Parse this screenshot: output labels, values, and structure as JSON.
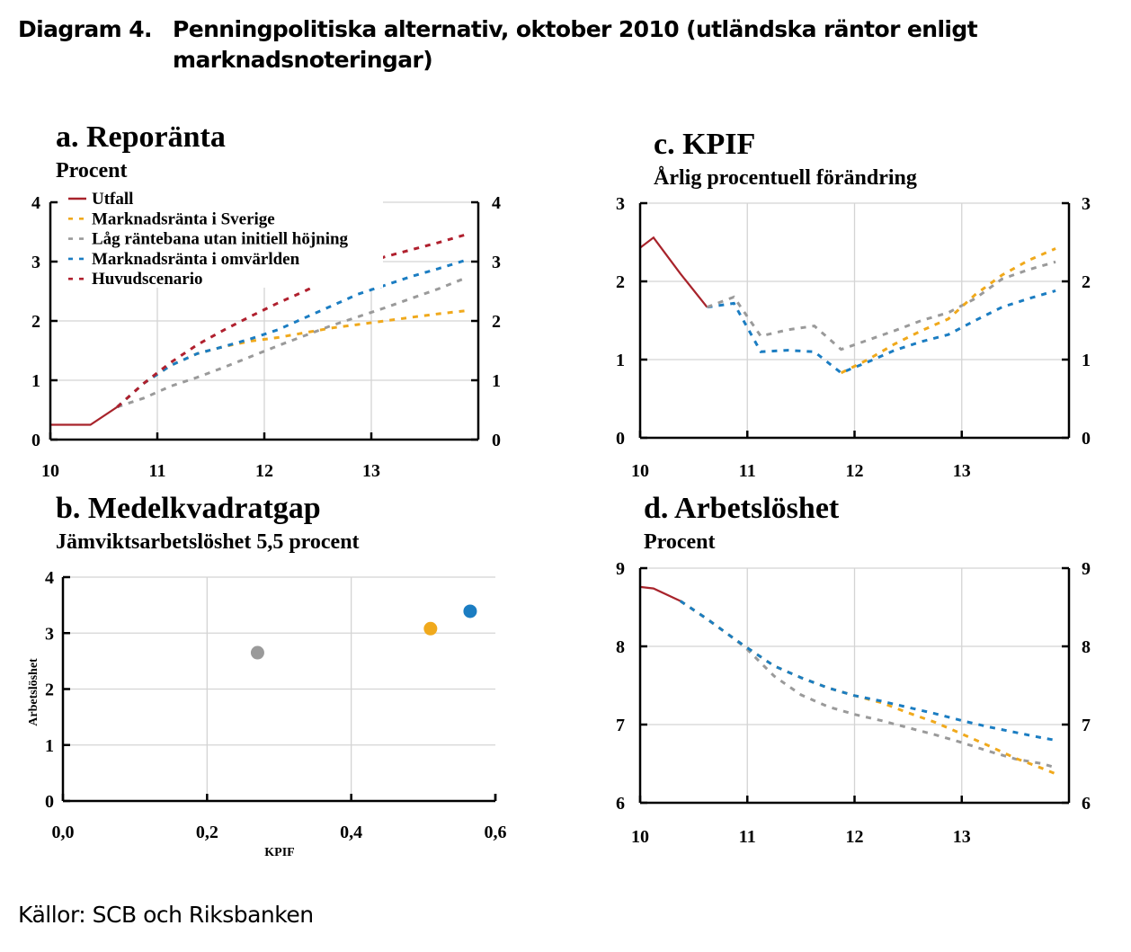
{
  "title": {
    "label": "Diagram 4.",
    "text_line1": "Penningpolitiska alternativ, oktober 2010 (utländska räntor enligt",
    "text_line2": "marknadsnoteringar)"
  },
  "source": "Källor: SCB och Riksbanken",
  "colors": {
    "utfall": "#a8232b",
    "marknad_sverige": "#f0a91c",
    "lag_rantebana": "#9a9a9a",
    "marknad_omvarlden": "#1b7dc2",
    "huvudscenario": "#b0202e"
  },
  "chart_data": [
    {
      "id": "a",
      "type": "line",
      "title": "a. Reporänta",
      "subtitle": "Procent",
      "xlim": [
        10,
        14
      ],
      "ylim": [
        0,
        4
      ],
      "xticks": [
        10,
        11,
        12,
        13
      ],
      "yticks": [
        0,
        1,
        2,
        3,
        4
      ],
      "grid": true,
      "legend": "top-left",
      "series": [
        {
          "name": "Utfall",
          "key": "utfall",
          "dashed": false,
          "x": [
            10.0,
            10.375,
            10.625
          ],
          "y": [
            0.25,
            0.25,
            0.55
          ]
        },
        {
          "name": "Marknadsränta i Sverige",
          "key": "marknad_sverige",
          "dashed": true,
          "x": [
            10.625,
            10.875,
            11.125,
            11.375,
            11.625,
            11.875,
            12.125,
            12.375,
            12.625,
            12.875,
            13.125,
            13.375,
            13.625,
            13.875
          ],
          "y": [
            0.55,
            0.95,
            1.25,
            1.45,
            1.57,
            1.66,
            1.72,
            1.8,
            1.88,
            1.94,
            2.0,
            2.06,
            2.12,
            2.17
          ]
        },
        {
          "name": "Låg räntebana utan initiell höjning",
          "key": "lag_rantebana",
          "dashed": true,
          "x": [
            10.625,
            10.875,
            11.125,
            11.375,
            11.625,
            11.875,
            12.125,
            12.375,
            12.625,
            12.875,
            13.125,
            13.375,
            13.625,
            13.875
          ],
          "y": [
            0.55,
            0.7,
            0.9,
            1.05,
            1.22,
            1.4,
            1.58,
            1.75,
            1.92,
            2.07,
            2.22,
            2.38,
            2.54,
            2.72
          ]
        },
        {
          "name": "Marknadsränta i omvärlden",
          "key": "marknad_omvarlden",
          "dashed": true,
          "x": [
            10.625,
            10.875,
            11.125,
            11.375,
            11.625,
            11.875,
            12.125,
            12.375,
            12.625,
            12.875,
            13.125,
            13.375,
            13.625,
            13.875
          ],
          "y": [
            0.55,
            0.95,
            1.25,
            1.45,
            1.57,
            1.7,
            1.85,
            2.05,
            2.25,
            2.45,
            2.6,
            2.75,
            2.88,
            3.02
          ]
        },
        {
          "name": "Huvudscenario",
          "key": "huvudscenario",
          "dashed": true,
          "x": [
            10.625,
            10.875,
            11.125,
            11.375,
            11.625,
            11.875,
            12.125,
            12.375,
            12.625,
            12.875,
            13.125,
            13.375,
            13.625,
            13.875
          ],
          "y": [
            0.55,
            0.95,
            1.3,
            1.6,
            1.85,
            2.08,
            2.3,
            2.5,
            2.72,
            2.92,
            3.08,
            3.2,
            3.32,
            3.45
          ]
        }
      ]
    },
    {
      "id": "b",
      "type": "scatter",
      "title": "b. Medelkvadratgap",
      "subtitle": "Jämviktsarbetslöshet 5,5 procent",
      "xlabel": "KPIF",
      "ylabel": "Arbetslöshet",
      "xlim": [
        0,
        0.6
      ],
      "ylim": [
        0,
        4
      ],
      "xticks": [
        "0,0",
        "0,2",
        "0,4",
        "0,6"
      ],
      "xtick_values": [
        0,
        0.2,
        0.4,
        0.6
      ],
      "yticks": [
        0,
        1,
        2,
        3,
        4
      ],
      "grid": true,
      "points": [
        {
          "key": "lag_rantebana",
          "x": 0.27,
          "y": 2.65
        },
        {
          "key": "marknad_sverige",
          "x": 0.51,
          "y": 3.08
        },
        {
          "key": "marknad_omvarlden",
          "x": 0.565,
          "y": 3.39
        }
      ]
    },
    {
      "id": "c",
      "type": "line",
      "title": "c. KPIF",
      "subtitle": "Årlig procentuell förändring",
      "xlim": [
        10,
        14
      ],
      "ylim": [
        0,
        3
      ],
      "xticks": [
        10,
        11,
        12,
        13
      ],
      "yticks": [
        0,
        1,
        2,
        3
      ],
      "grid": true,
      "series": [
        {
          "name": "Utfall",
          "key": "utfall",
          "dashed": false,
          "x": [
            10.0,
            10.125,
            10.375,
            10.625
          ],
          "y": [
            2.43,
            2.56,
            2.1,
            1.67
          ]
        },
        {
          "name": "Marknadsränta i omvärlden",
          "key": "marknad_omvarlden",
          "dashed": true,
          "x": [
            10.625,
            10.875,
            11.125,
            11.375,
            11.625,
            11.875,
            12.125,
            12.375,
            12.625,
            12.875,
            13.125,
            13.375,
            13.625,
            13.875
          ],
          "y": [
            1.67,
            1.72,
            1.1,
            1.12,
            1.1,
            0.83,
            0.97,
            1.12,
            1.23,
            1.32,
            1.5,
            1.67,
            1.78,
            1.88
          ]
        },
        {
          "name": "Låg räntebana utan initiell höjning",
          "key": "lag_rantebana",
          "dashed": true,
          "x": [
            10.625,
            10.875,
            11.125,
            11.375,
            11.625,
            11.875,
            12.125,
            12.375,
            12.625,
            12.875,
            13.125,
            13.375,
            13.625,
            13.875
          ],
          "y": [
            1.67,
            1.8,
            1.3,
            1.38,
            1.43,
            1.13,
            1.25,
            1.37,
            1.5,
            1.6,
            1.78,
            2.03,
            2.15,
            2.25
          ]
        },
        {
          "name": "Marknadsränta i Sverige",
          "key": "marknad_sverige",
          "dashed": true,
          "x": [
            11.875,
            12.125,
            12.375,
            12.625,
            12.875,
            13.125,
            13.375,
            13.625,
            13.875
          ],
          "y": [
            0.83,
            1.0,
            1.2,
            1.37,
            1.52,
            1.83,
            2.08,
            2.27,
            2.42
          ]
        }
      ]
    },
    {
      "id": "d",
      "type": "line",
      "title": "d. Arbetslöshet",
      "subtitle": "Procent",
      "xlim": [
        10,
        14
      ],
      "ylim": [
        6,
        9
      ],
      "xticks": [
        10,
        11,
        12,
        13
      ],
      "yticks": [
        6,
        7,
        8,
        9
      ],
      "grid": true,
      "series": [
        {
          "name": "Utfall",
          "key": "utfall",
          "dashed": false,
          "x": [
            10.0,
            10.125,
            10.375
          ],
          "y": [
            8.76,
            8.74,
            8.58
          ]
        },
        {
          "name": "Låg räntebana utan initiell höjning",
          "key": "lag_rantebana",
          "dashed": true,
          "x": [
            10.375,
            10.625,
            10.875,
            11.0,
            11.25,
            11.5,
            11.75,
            12.0,
            12.25,
            12.5,
            12.75,
            13.0,
            13.25,
            13.5,
            13.75,
            13.875
          ],
          "y": [
            8.58,
            8.35,
            8.1,
            7.96,
            7.62,
            7.38,
            7.23,
            7.13,
            7.05,
            6.96,
            6.87,
            6.77,
            6.66,
            6.56,
            6.5,
            6.45
          ]
        },
        {
          "name": "Marknadsränta i Sverige",
          "key": "marknad_sverige",
          "dashed": true,
          "x": [
            10.375,
            10.625,
            10.875,
            11.0,
            11.25,
            11.5,
            11.75,
            12.0,
            12.25,
            12.5,
            12.75,
            13.0,
            13.25,
            13.5,
            13.75,
            13.875
          ],
          "y": [
            8.58,
            8.35,
            8.1,
            7.98,
            7.75,
            7.6,
            7.47,
            7.37,
            7.28,
            7.15,
            7.03,
            6.88,
            6.73,
            6.57,
            6.44,
            6.37
          ]
        },
        {
          "name": "Marknadsränta i omvärlden",
          "key": "marknad_omvarlden",
          "dashed": true,
          "x": [
            10.375,
            10.625,
            10.875,
            11.0,
            11.25,
            11.5,
            11.75,
            12.0,
            12.25,
            12.5,
            12.75,
            13.0,
            13.25,
            13.5,
            13.75,
            13.875
          ],
          "y": [
            8.58,
            8.35,
            8.1,
            7.98,
            7.75,
            7.6,
            7.47,
            7.37,
            7.3,
            7.22,
            7.14,
            7.05,
            6.97,
            6.9,
            6.83,
            6.8
          ]
        }
      ]
    }
  ]
}
